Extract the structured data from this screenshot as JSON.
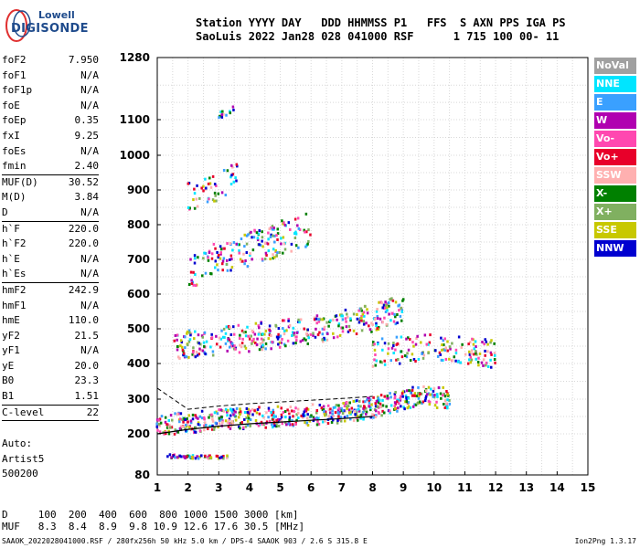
{
  "logo": {
    "line1": "Lowell",
    "line2": "DIGISONDE"
  },
  "header": {
    "labels": "Station YYYY DAY   DDD HHMMSS P1   FFS  S AXN PPS IGA PS",
    "values": "SaoLuis 2022 Jan28 028 041000 RSF      1 715 100 00- 11"
  },
  "params": [
    {
      "label": "foF2",
      "value": "7.950"
    },
    {
      "label": "foF1",
      "value": "N/A"
    },
    {
      "label": "foF1p",
      "value": "N/A"
    },
    {
      "label": "foE",
      "value": "N/A"
    },
    {
      "label": "foEp",
      "value": "0.35"
    },
    {
      "label": "fxI",
      "value": "9.25"
    },
    {
      "label": "foEs",
      "value": "N/A"
    },
    {
      "label": "fmin",
      "value": "2.40",
      "sep": true
    },
    {
      "label": "MUF(D)",
      "value": "30.52"
    },
    {
      "label": "M(D)",
      "value": "3.84"
    },
    {
      "label": "D",
      "value": "N/A",
      "sep": true
    },
    {
      "label": "h`F",
      "value": "220.0"
    },
    {
      "label": "h`F2",
      "value": "220.0"
    },
    {
      "label": "h`E",
      "value": "N/A"
    },
    {
      "label": "h`Es",
      "value": "N/A",
      "sep": true
    },
    {
      "label": "hmF2",
      "value": "242.9"
    },
    {
      "label": "hmF1",
      "value": "N/A"
    },
    {
      "label": "hmE",
      "value": "110.0"
    },
    {
      "label": "yF2",
      "value": "21.5"
    },
    {
      "label": "yF1",
      "value": "N/A"
    },
    {
      "label": "yE",
      "value": "20.0"
    },
    {
      "label": "B0",
      "value": "23.3"
    },
    {
      "label": "B1",
      "value": "1.51",
      "sep": true
    },
    {
      "label": "C-level",
      "value": "22",
      "sep": true
    }
  ],
  "auto": {
    "l1": "Auto:",
    "l2": "Artist5",
    "l3": "500200"
  },
  "legend": [
    {
      "label": "NoVal",
      "color": "#a0a0a0"
    },
    {
      "label": "NNE",
      "color": "#00e5ff"
    },
    {
      "label": "E",
      "color": "#3aa0ff"
    },
    {
      "label": "W",
      "color": "#b000b0"
    },
    {
      "label": "Vo-",
      "color": "#ff48b0"
    },
    {
      "label": "Vo+",
      "color": "#e8002a"
    },
    {
      "label": "SSW",
      "color": "#ffb0b0"
    },
    {
      "label": "X-",
      "color": "#008000"
    },
    {
      "label": "X+",
      "color": "#80b060"
    },
    {
      "label": "SSE",
      "color": "#c8c800"
    },
    {
      "label": "NNW",
      "color": "#0000d0"
    }
  ],
  "bottom": {
    "l1": "D     100  200  400  600  800 1000 1500 3000 [km]",
    "l2": "MUF   8.3  8.4  8.9  9.8 10.9 12.6 17.6 30.5 [MHz]"
  },
  "footer": {
    "left": "SAAOK_2022028041000.RSF / 280fx256h 50 kHz 5.0 km / DPS-4 SAAOK 903 / 2.6 S 315.8 E",
    "right": "Ion2Png 1.3.17"
  },
  "chart_data": {
    "type": "scatter",
    "x_ticks": [
      1,
      2,
      3,
      4,
      5,
      6,
      7,
      8,
      9,
      10,
      11,
      12,
      13,
      14,
      15
    ],
    "y_ticks": [
      80,
      200,
      300,
      400,
      500,
      600,
      700,
      800,
      900,
      1000,
      1100,
      1280
    ],
    "xlim": [
      1,
      15
    ],
    "ylim": [
      80,
      1280
    ],
    "grid": true,
    "traces": [
      {
        "name": "F2 O-trace",
        "x": [
          1.0,
          2.0,
          3.0,
          4.0,
          5.0,
          6.0,
          7.0,
          7.5,
          8.0,
          8.3,
          8.6,
          9.0,
          9.5,
          10.0,
          10.5
        ],
        "y": [
          225,
          232,
          240,
          245,
          250,
          255,
          262,
          268,
          276,
          282,
          290,
          300,
          310,
          305,
          300
        ]
      },
      {
        "name": "2F trace",
        "x": [
          1.5,
          2.5,
          3.5,
          4.5,
          5.5,
          6.5,
          7.5,
          8.5,
          9.0
        ],
        "y": [
          450,
          460,
          470,
          480,
          490,
          505,
          520,
          545,
          560
        ]
      },
      {
        "name": "3F trace",
        "x": [
          2.0,
          3.0,
          4.0,
          5.0,
          6.0
        ],
        "y": [
          660,
          700,
          730,
          760,
          790
        ]
      },
      {
        "name": "4F trace",
        "x": [
          2.0,
          3.0,
          3.6
        ],
        "y": [
          880,
          910,
          950
        ]
      },
      {
        "name": "5F trace",
        "x": [
          3.0,
          3.5
        ],
        "y": [
          1110,
          1130
        ]
      },
      {
        "name": "Es trace",
        "x": [
          1.3,
          1.8,
          2.3,
          2.8,
          3.3
        ],
        "y": [
          135,
          133,
          132,
          132,
          133
        ]
      },
      {
        "name": "spread F",
        "x": [
          8.0,
          9.0,
          10.0,
          11.0,
          12.0
        ],
        "y": [
          430,
          440,
          450,
          440,
          425
        ]
      }
    ],
    "profile": {
      "x": [
        1.0,
        2.0,
        3.0,
        4.0,
        5.0,
        6.0,
        7.0,
        8.0
      ],
      "y": [
        200,
        213,
        222,
        229,
        234,
        239,
        244,
        250
      ]
    }
  }
}
